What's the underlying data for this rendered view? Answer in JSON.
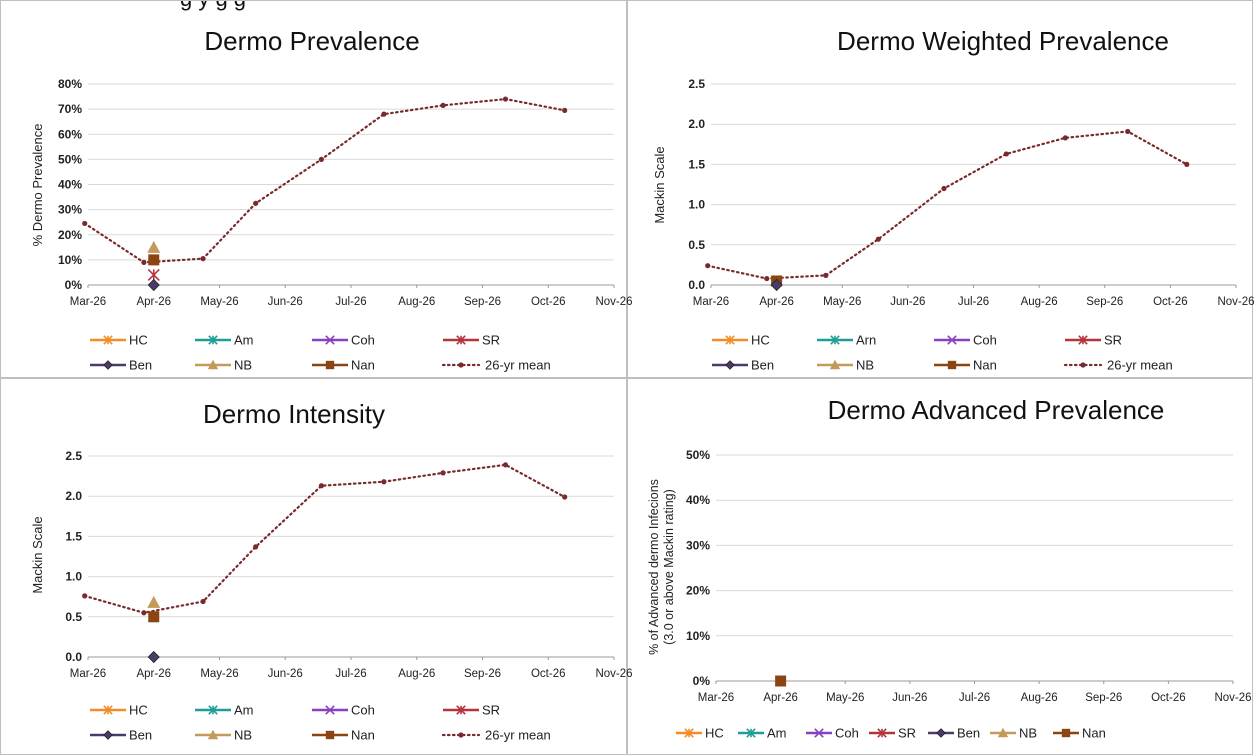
{
  "caption_fragment": "g y        g        g",
  "colors": {
    "HC": "#f28c28",
    "Am": "#1f9e96",
    "Coh": "#8a3fc2",
    "SR": "#b4343d",
    "Ben": "#4b3b6b",
    "NB": "#c49a5a",
    "Nan": "#8b4513",
    "mean": "#7a2a2a",
    "grid": "#d9d9d9",
    "axis": "#999999"
  },
  "chart_data": [
    {
      "id": "prevalence",
      "type": "line",
      "title": "Dermo Prevalence",
      "xlabel": "",
      "ylabel": "% Dermo Prevalence",
      "categories": [
        "Mar-26",
        "Apr-26",
        "May-26",
        "Jun-26",
        "Jul-26",
        "Aug-26",
        "Sep-26",
        "Oct-26",
        "Nov-26"
      ],
      "yticks": [
        "0%",
        "10%",
        "20%",
        "30%",
        "40%",
        "50%",
        "60%",
        "70%",
        "80%"
      ],
      "ylim": [
        0,
        80
      ],
      "grid": true,
      "mean_series": {
        "name": "26-yr mean",
        "x": [
          -0.05,
          0.85,
          1.75,
          2.55,
          3.55,
          4.5,
          5.4,
          6.35,
          7.25
        ],
        "y": [
          24.5,
          9,
          10.5,
          32.5,
          50,
          68,
          71.5,
          74,
          69.5
        ]
      },
      "markers": [
        {
          "name": "NB",
          "x": 1.0,
          "y": 15
        },
        {
          "name": "Nan",
          "x": 1.0,
          "y": 10
        },
        {
          "name": "SR",
          "x": 1.0,
          "y": 4
        },
        {
          "name": "Ben",
          "x": 1.0,
          "y": 0
        }
      ],
      "legend": [
        [
          "HC",
          "Am",
          "Coh",
          "SR"
        ],
        [
          "Ben",
          "NB",
          "Nan",
          "26-yr mean"
        ]
      ]
    },
    {
      "id": "weighted",
      "type": "line",
      "title": "Dermo Weighted Prevalence",
      "xlabel": "",
      "ylabel": "Mackin Scale",
      "categories": [
        "Mar-26",
        "Apr-26",
        "May-26",
        "Jun-26",
        "Jul-26",
        "Aug-26",
        "Sep-26",
        "Oct-26",
        "Nov-26"
      ],
      "yticks": [
        "0.0",
        "0.5",
        "1.0",
        "1.5",
        "2.0",
        "2.5"
      ],
      "ylim": [
        0,
        2.5
      ],
      "grid": true,
      "mean_series": {
        "name": "26-yr mean",
        "x": [
          -0.05,
          0.85,
          1.75,
          2.55,
          3.55,
          4.5,
          5.4,
          6.35,
          7.25
        ],
        "y": [
          0.24,
          0.08,
          0.12,
          0.57,
          1.2,
          1.63,
          1.83,
          1.91,
          1.5
        ]
      },
      "markers": [
        {
          "name": "Nan",
          "x": 1.0,
          "y": 0.05
        },
        {
          "name": "Ben",
          "x": 1.0,
          "y": 0.0
        }
      ],
      "legend": [
        [
          "HC",
          "Arn",
          "Coh",
          "SR"
        ],
        [
          "Ben",
          "NB",
          "Nan",
          "26-yr mean"
        ]
      ]
    },
    {
      "id": "intensity",
      "type": "line",
      "title": "Dermo Intensity",
      "xlabel": "",
      "ylabel": "Mackin Scale",
      "categories": [
        "Mar-26",
        "Apr-26",
        "May-26",
        "Jun-26",
        "Jul-26",
        "Aug-26",
        "Sep-26",
        "Oct-26",
        "Nov-26"
      ],
      "yticks": [
        "0.0",
        "0.5",
        "1.0",
        "1.5",
        "2.0",
        "2.5"
      ],
      "ylim": [
        0,
        2.5
      ],
      "grid": true,
      "mean_series": {
        "name": "26-yr mean",
        "x": [
          -0.05,
          0.85,
          1.75,
          2.55,
          3.55,
          4.5,
          5.4,
          6.35,
          7.25
        ],
        "y": [
          0.76,
          0.55,
          0.69,
          1.37,
          2.13,
          2.18,
          2.29,
          2.39,
          1.99
        ]
      },
      "markers": [
        {
          "name": "NB",
          "x": 1.0,
          "y": 0.68
        },
        {
          "name": "Nan",
          "x": 1.0,
          "y": 0.5
        },
        {
          "name": "Ben",
          "x": 1.0,
          "y": 0.0
        }
      ],
      "legend": [
        [
          "HC",
          "Am",
          "Coh",
          "SR"
        ],
        [
          "Ben",
          "NB",
          "Nan",
          "26-yr mean"
        ]
      ]
    },
    {
      "id": "advanced",
      "type": "line",
      "title": "Dermo Advanced Prevalence",
      "xlabel": "",
      "ylabel": "% of Advanced dermo Infecions (3.0 or above Mackin rating)",
      "ylabel_lines": [
        "% of Advanced dermo Infecions",
        "(3.0 or above Mackin rating)"
      ],
      "categories": [
        "Mar-26",
        "Apr-26",
        "May-26",
        "Jun-26",
        "Jul-26",
        "Aug-26",
        "Sep-26",
        "Oct-26",
        "Nov-26"
      ],
      "yticks": [
        "0%",
        "10%",
        "20%",
        "30%",
        "40%",
        "50%"
      ],
      "ylim": [
        0,
        50
      ],
      "grid": true,
      "mean_series": null,
      "markers": [
        {
          "name": "Nan",
          "x": 1.0,
          "y": 0
        }
      ],
      "legend": [
        [
          "HC",
          "Am",
          "Coh",
          "SR",
          "Ben",
          "NB",
          "Nan"
        ]
      ]
    }
  ]
}
